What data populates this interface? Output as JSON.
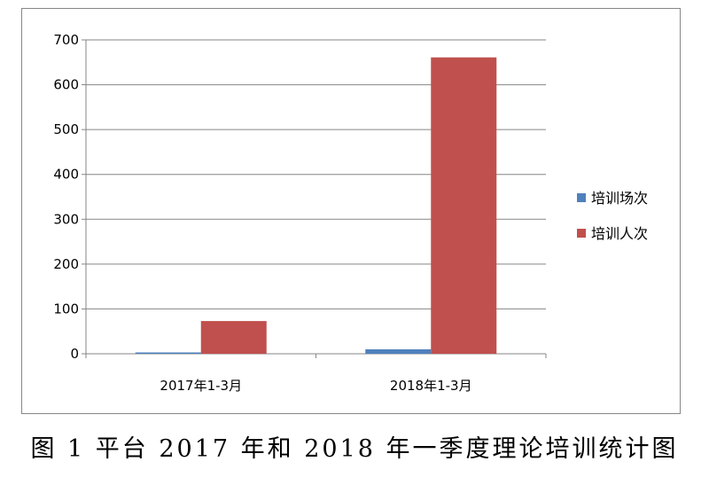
{
  "caption": "图 1 平台 2017 年和 2018 年一季度理论培训统计图",
  "chart_data": {
    "type": "bar",
    "categories": [
      "2017年1-3月",
      "2018年1-3月"
    ],
    "series": [
      {
        "name": "培训场次",
        "values": [
          3,
          10
        ],
        "color": "#4f81bd"
      },
      {
        "name": "培训人次",
        "values": [
          73,
          661
        ],
        "color": "#c0504d"
      }
    ],
    "ylim": [
      0,
      700
    ],
    "yticks": [
      0,
      100,
      200,
      300,
      400,
      500,
      600,
      700
    ],
    "grid": true,
    "legend": "right",
    "title": "",
    "xlabel": "",
    "ylabel": ""
  }
}
